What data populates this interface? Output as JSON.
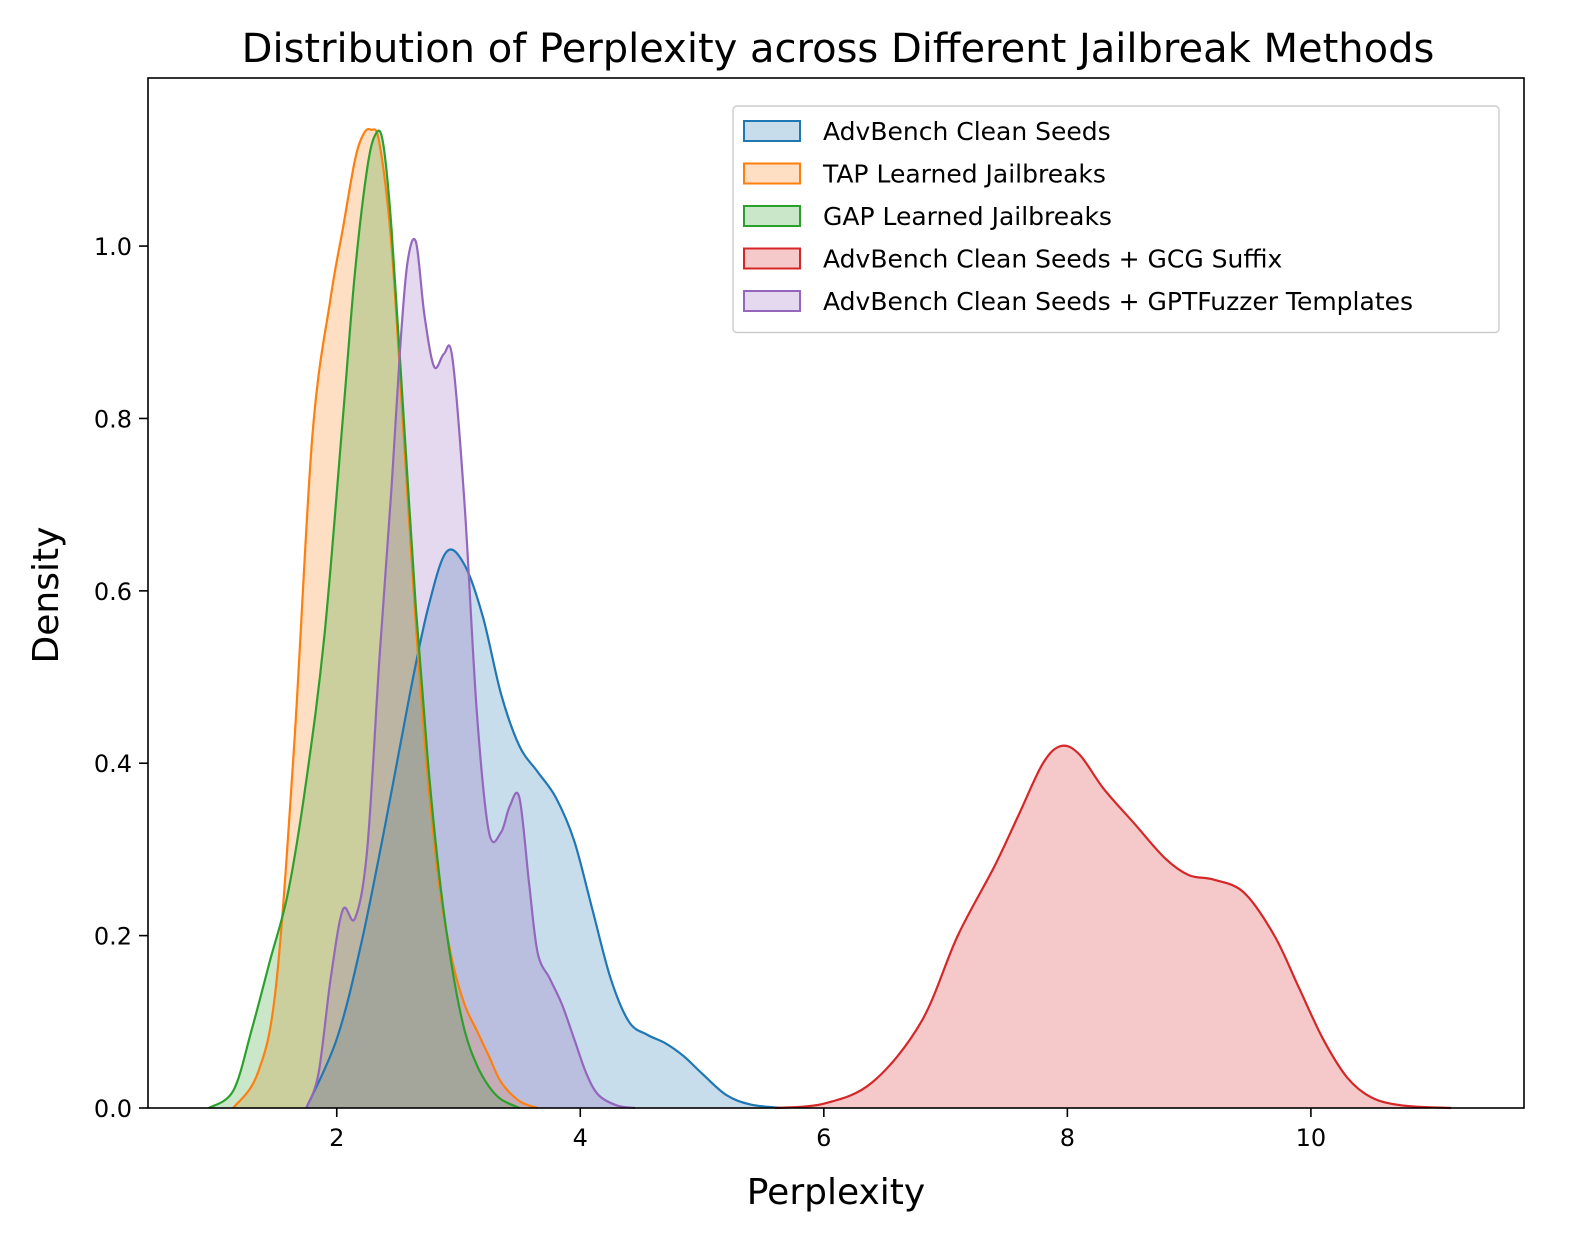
{
  "chart_data": {
    "type": "area",
    "title": "Distribution of Perplexity across Different Jailbreak Methods",
    "xlabel": "Perplexity",
    "ylabel": "Density",
    "xlim": [
      0.45,
      11.75
    ],
    "ylim": [
      0.0,
      1.195
    ],
    "xticks": [
      2,
      4,
      6,
      8,
      10
    ],
    "xtick_labels": [
      "2",
      "4",
      "6",
      "8",
      "10"
    ],
    "yticks": [
      0.0,
      0.2,
      0.4,
      0.6,
      0.8,
      1.0
    ],
    "ytick_labels": [
      "0.0",
      "0.2",
      "0.4",
      "0.6",
      "0.8",
      "1.0"
    ],
    "grid": false,
    "legend_position": "top-right",
    "series": [
      {
        "name": "AdvBench Clean Seeds",
        "color": "#1f77b4",
        "x": [
          1.75,
          2.0,
          2.2,
          2.4,
          2.6,
          2.75,
          2.9,
          3.05,
          3.2,
          3.35,
          3.5,
          3.65,
          3.8,
          3.95,
          4.1,
          4.25,
          4.4,
          4.55,
          4.7,
          4.85,
          5.0,
          5.2,
          5.4,
          5.65
        ],
        "y": [
          0.0,
          0.08,
          0.19,
          0.33,
          0.48,
          0.58,
          0.645,
          0.63,
          0.57,
          0.48,
          0.42,
          0.39,
          0.36,
          0.31,
          0.23,
          0.15,
          0.1,
          0.085,
          0.075,
          0.06,
          0.04,
          0.015,
          0.004,
          0.0
        ]
      },
      {
        "name": "TAP Learned Jailbreaks",
        "color": "#ff7f0e",
        "x": [
          1.15,
          1.35,
          1.5,
          1.65,
          1.8,
          1.95,
          2.05,
          2.15,
          2.22,
          2.28,
          2.35,
          2.45,
          2.55,
          2.65,
          2.75,
          2.85,
          2.95,
          3.05,
          3.15,
          3.25,
          3.35,
          3.5,
          3.65
        ],
        "y": [
          0.0,
          0.04,
          0.14,
          0.42,
          0.78,
          0.94,
          1.02,
          1.1,
          1.13,
          1.135,
          1.12,
          1.0,
          0.78,
          0.56,
          0.38,
          0.25,
          0.17,
          0.12,
          0.09,
          0.06,
          0.03,
          0.008,
          0.0
        ]
      },
      {
        "name": "GAP Learned Jailbreaks",
        "color": "#2ca02c",
        "x": [
          0.95,
          1.15,
          1.3,
          1.45,
          1.6,
          1.75,
          1.9,
          2.05,
          2.15,
          2.25,
          2.32,
          2.38,
          2.45,
          2.55,
          2.65,
          2.75,
          2.85,
          2.95,
          3.05,
          3.15,
          3.25,
          3.35,
          3.5
        ],
        "y": [
          0.0,
          0.02,
          0.09,
          0.17,
          0.25,
          0.38,
          0.55,
          0.8,
          0.97,
          1.09,
          1.13,
          1.12,
          1.02,
          0.8,
          0.58,
          0.4,
          0.26,
          0.16,
          0.09,
          0.05,
          0.025,
          0.01,
          0.0
        ]
      },
      {
        "name": "AdvBench Clean Seeds + GCG Suffix",
        "color": "#d62728",
        "x": [
          5.6,
          6.0,
          6.4,
          6.8,
          7.1,
          7.4,
          7.6,
          7.8,
          7.95,
          8.1,
          8.3,
          8.55,
          8.8,
          9.0,
          9.2,
          9.45,
          9.7,
          9.9,
          10.1,
          10.3,
          10.5,
          10.75,
          11.15
        ],
        "y": [
          0.0,
          0.005,
          0.03,
          0.1,
          0.2,
          0.28,
          0.34,
          0.4,
          0.42,
          0.41,
          0.37,
          0.33,
          0.29,
          0.27,
          0.265,
          0.25,
          0.2,
          0.14,
          0.08,
          0.035,
          0.012,
          0.003,
          0.0
        ]
      },
      {
        "name": "AdvBench Clean Seeds + GPTFuzzer Templates",
        "color": "#9467bd",
        "x": [
          1.75,
          1.85,
          1.95,
          2.05,
          2.15,
          2.25,
          2.35,
          2.45,
          2.52,
          2.58,
          2.65,
          2.72,
          2.8,
          2.88,
          2.95,
          3.05,
          3.15,
          3.25,
          3.35,
          3.42,
          3.5,
          3.58,
          3.65,
          3.75,
          3.85,
          3.95,
          4.05,
          4.15,
          4.3,
          4.45
        ],
        "y": [
          0.0,
          0.04,
          0.15,
          0.23,
          0.22,
          0.3,
          0.52,
          0.72,
          0.88,
          0.98,
          1.005,
          0.92,
          0.86,
          0.875,
          0.87,
          0.7,
          0.46,
          0.32,
          0.32,
          0.35,
          0.36,
          0.26,
          0.18,
          0.15,
          0.12,
          0.08,
          0.04,
          0.015,
          0.003,
          0.0
        ]
      }
    ]
  }
}
